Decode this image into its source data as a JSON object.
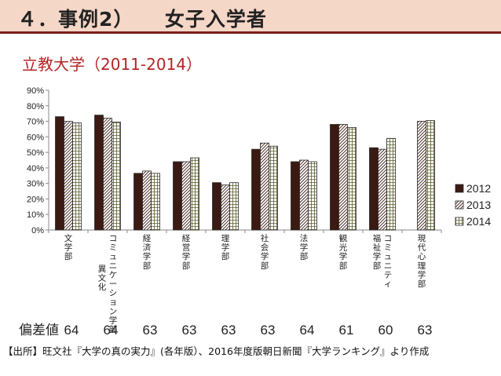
{
  "slide": {
    "title": "４．事例2）　　女子入学者",
    "subtitle": "立教大学（2011-2014）",
    "deviation_label": "偏差値",
    "source_note": "【出所】旺文社『大学の真の実力』(各年版）、2016年度版朝日新聞『大学ランキング』より作成"
  },
  "chart_data": {
    "type": "bar",
    "title": "",
    "xlabel": "",
    "ylabel": "",
    "ylim": [
      0,
      90
    ],
    "yticks": [
      "0%",
      "10%",
      "20%",
      "30%",
      "40%",
      "50%",
      "60%",
      "70%",
      "80%",
      "90%"
    ],
    "grid": false,
    "legend_position": "right",
    "categories": [
      [
        "文",
        "学",
        "部"
      ],
      [
        "コ",
        "ミ",
        "ュ",
        "ニ",
        "ケ",
        "ー",
        "シ",
        "ョ",
        "ン",
        "学",
        "部"
      ],
      [
        "経",
        "済",
        "学",
        "部"
      ],
      [
        "経",
        "営",
        "学",
        "部"
      ],
      [
        "理",
        "学",
        "部"
      ],
      [
        "社",
        "会",
        "学",
        "部"
      ],
      [
        "法",
        "学",
        "部"
      ],
      [
        "観",
        "光",
        "学",
        "部"
      ],
      [
        "コ",
        "ミ",
        "ュ",
        "ニ",
        "テ",
        "ィ"
      ],
      [
        "現",
        "代",
        "心",
        "理",
        "学",
        "部"
      ]
    ],
    "category_secondary": [
      null,
      [
        "異",
        "文",
        "化"
      ],
      null,
      null,
      null,
      null,
      null,
      null,
      [
        "福",
        "祉",
        "学",
        "部"
      ],
      null
    ],
    "series": [
      {
        "name": "2012",
        "color": "#3a1a12",
        "pattern": "solid",
        "values": [
          73,
          74,
          36.5,
          44,
          30.5,
          52,
          44,
          68,
          53,
          null
        ]
      },
      {
        "name": "2013",
        "color": "#3a1a12",
        "pattern": "hatch",
        "values": [
          70,
          72,
          38,
          44,
          29,
          56,
          45,
          68,
          52,
          70
        ]
      },
      {
        "name": "2014",
        "color": "#3a1a12",
        "pattern": "grid",
        "values": [
          69,
          69.5,
          36.5,
          46.5,
          30.5,
          54,
          44,
          66,
          59,
          70.5
        ]
      }
    ],
    "deviation_values": [
      "64",
      "64",
      "63",
      "63",
      "63",
      "63",
      "64",
      "61",
      "60",
      "63"
    ]
  }
}
